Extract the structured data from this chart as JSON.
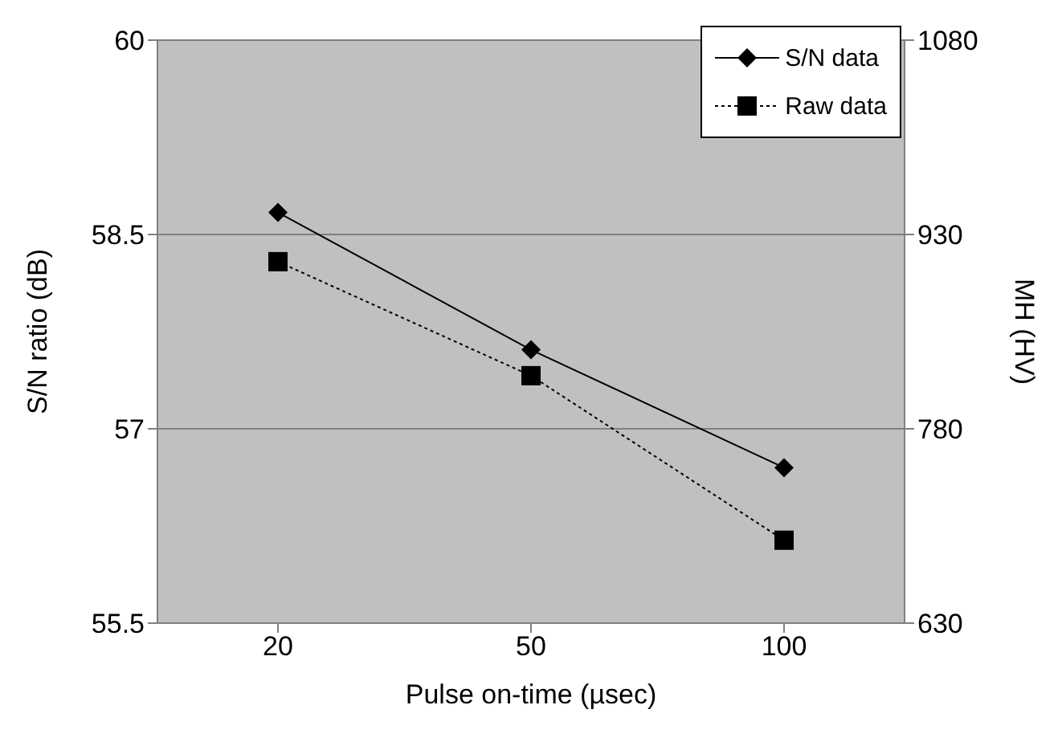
{
  "chart_data": {
    "type": "line",
    "xlabel": "Pulse on-time (µsec)",
    "ylabel": "S/N ratio (dB)",
    "y2label": "MH (HV)",
    "categories": [
      "20",
      "50",
      "100"
    ],
    "series": [
      {
        "name": "S/N data",
        "color": "#000000",
        "values": [
          58.67,
          57.61,
          56.7
        ],
        "marker": "diamond",
        "line_style": "solid"
      },
      {
        "name": "Raw data",
        "color": "#000000",
        "values": [
          909,
          821,
          694
        ],
        "axis": "y2",
        "marker": "square",
        "line_style": "dotted"
      }
    ],
    "ylim": [
      55.5,
      60
    ],
    "yticks": [
      55.5,
      57,
      58.5,
      60
    ],
    "y2lim": [
      630,
      1080
    ],
    "y2ticks": [
      630,
      780,
      930,
      1080
    ],
    "grid": "y",
    "legend": "top right"
  }
}
